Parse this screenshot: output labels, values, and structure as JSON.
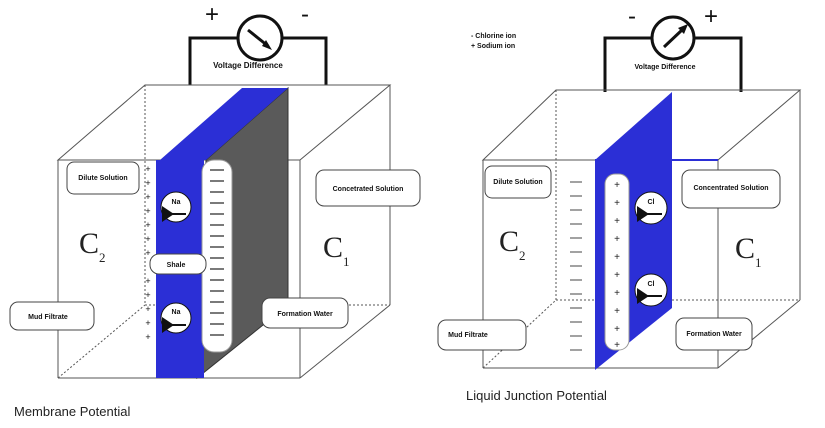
{
  "colors": {
    "membrane_blue": "#2b2fd6",
    "shale_gray": "#5a5a5a",
    "line": "#222222",
    "wire": "#111111"
  },
  "membrane": {
    "meter_plus": "+",
    "meter_minus": "-",
    "voltage_label": "Voltage Difference",
    "dilute_label": "Dilute Solution",
    "concentrated_label": "Concetrated Solution",
    "c2_letter": "C",
    "c2_sub": "2",
    "c1_letter": "C",
    "c1_sub": "1",
    "shale_label": "Shale",
    "mud_filtrate_label": "Mud Filtrate",
    "formation_water_label": "Formation Water",
    "ion_top_label": "Na",
    "ion_bottom_label": "Na",
    "caption": "Membrane Potential"
  },
  "junction": {
    "legend_line1": "- Chlorine ion",
    "legend_line2": "+ Sodium ion",
    "meter_minus": "-",
    "meter_plus": "+",
    "voltage_label": "Voltage Difference",
    "dilute_label": "Dilute Solution",
    "concentrated_label": "Concentrated Solution",
    "c2_letter": "C",
    "c2_sub": "2",
    "c1_letter": "C",
    "c1_sub": "1",
    "mud_filtrate_label": "Mud Filtrate",
    "formation_water_label": "Formation Water",
    "ion_top_label": "Cl",
    "ion_bottom_label": "Cl",
    "caption": "Liquid Junction Potential"
  }
}
